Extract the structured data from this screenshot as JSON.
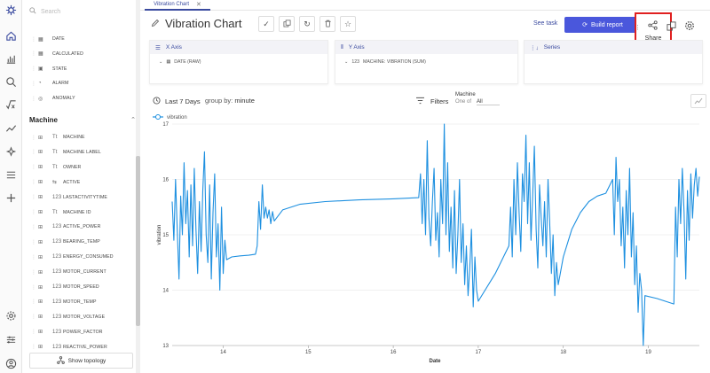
{
  "search": {
    "placeholder": "Search"
  },
  "panel": {
    "base_fields": [
      {
        "type": "date",
        "name": "DATE"
      },
      {
        "type": "calc",
        "name": "CALCULATED"
      },
      {
        "type": "state",
        "name": "STATE"
      },
      {
        "type": "alarm",
        "name": "ALARM"
      },
      {
        "type": "anomaly",
        "name": "ANOMALY"
      }
    ],
    "section_title": "Machine",
    "machine_fields": [
      {
        "type": "Tt",
        "name": "MACHINE"
      },
      {
        "type": "Tt",
        "name": "MACHINE LABEL"
      },
      {
        "type": "Tt",
        "name": "OWNER"
      },
      {
        "type": "bool",
        "name": "ACTIVE"
      },
      {
        "type": "123",
        "name": "LASTACTIVITYTIME"
      },
      {
        "type": "Tt",
        "name": "MACHINE ID"
      },
      {
        "type": "123",
        "name": "ACTIVE_POWER"
      },
      {
        "type": "123",
        "name": "BEARING_TEMP"
      },
      {
        "type": "123",
        "name": "ENERGY_CONSUMED"
      },
      {
        "type": "123",
        "name": "MOTOR_CURRENT"
      },
      {
        "type": "123",
        "name": "MOTOR_SPEED"
      },
      {
        "type": "123",
        "name": "MOTOR_TEMP"
      },
      {
        "type": "123",
        "name": "MOTOR_VOLTAGE"
      },
      {
        "type": "123",
        "name": "POWER_FACTOR"
      },
      {
        "type": "123",
        "name": "REACTIVE_POWER"
      }
    ],
    "topology_label": "Show topology"
  },
  "tab": {
    "label": "Vibration Chart"
  },
  "header": {
    "title": "Vibration Chart",
    "see_task": "See task",
    "build_report": "Build report",
    "share_label": "Share"
  },
  "axes": {
    "x": {
      "header": "X Axis",
      "value": "DATE (RAW)"
    },
    "y": {
      "header": "Y Axis",
      "value": "MACHINE: VIBRATION (SUM)"
    },
    "series": {
      "header": "Series"
    }
  },
  "chart_controls": {
    "period": "Last 7 Days",
    "group_prefix": "group by:",
    "group_value": "minute",
    "filters_label": "Filters",
    "machine_label": "Machine",
    "one_of": "One of",
    "all": "All"
  },
  "colors": {
    "accent": "#3a4a9f",
    "button": "#4a57dc",
    "series": "#1e90e0",
    "highlight": "#e02020"
  },
  "chart_data": {
    "type": "line",
    "title": "",
    "xlabel": "Date",
    "ylabel": "vibration",
    "series_name": "vibration",
    "legend": "top-left",
    "grid": true,
    "xlim": [
      13.4,
      19.6
    ],
    "ylim": [
      13,
      17
    ],
    "xticks": [
      14,
      15,
      16,
      17,
      18,
      19
    ],
    "yticks": [
      13,
      14,
      15,
      16,
      17
    ],
    "points": [
      [
        13.4,
        15.6
      ],
      [
        13.42,
        14.9
      ],
      [
        13.44,
        16.0
      ],
      [
        13.46,
        15.1
      ],
      [
        13.48,
        14.2
      ],
      [
        13.5,
        15.7
      ],
      [
        13.52,
        15.0
      ],
      [
        13.54,
        16.3
      ],
      [
        13.56,
        15.2
      ],
      [
        13.58,
        15.8
      ],
      [
        13.6,
        14.6
      ],
      [
        13.62,
        15.9
      ],
      [
        13.64,
        14.8
      ],
      [
        13.66,
        16.2
      ],
      [
        13.68,
        15.1
      ],
      [
        13.7,
        14.3
      ],
      [
        13.72,
        15.6
      ],
      [
        13.74,
        14.7
      ],
      [
        13.76,
        15.8
      ],
      [
        13.78,
        16.5
      ],
      [
        13.8,
        15.0
      ],
      [
        13.82,
        14.5
      ],
      [
        13.84,
        15.9
      ],
      [
        13.86,
        14.2
      ],
      [
        13.88,
        15.4
      ],
      [
        13.9,
        16.1
      ],
      [
        13.92,
        14.6
      ],
      [
        13.94,
        15.2
      ],
      [
        13.96,
        14.0
      ],
      [
        13.98,
        15.5
      ],
      [
        14.0,
        14.3
      ],
      [
        14.02,
        14.9
      ],
      [
        14.04,
        14.55
      ],
      [
        14.1,
        14.6
      ],
      [
        14.2,
        14.62
      ],
      [
        14.3,
        14.63
      ],
      [
        14.38,
        14.65
      ],
      [
        14.4,
        14.8
      ],
      [
        14.42,
        15.6
      ],
      [
        14.44,
        15.1
      ],
      [
        14.46,
        15.9
      ],
      [
        14.48,
        15.3
      ],
      [
        14.5,
        15.5
      ],
      [
        14.52,
        15.3
      ],
      [
        14.54,
        15.45
      ],
      [
        14.56,
        15.2
      ],
      [
        14.58,
        15.42
      ],
      [
        14.6,
        15.25
      ],
      [
        14.7,
        15.45
      ],
      [
        14.9,
        15.55
      ],
      [
        15.2,
        15.6
      ],
      [
        15.6,
        15.63
      ],
      [
        16.0,
        15.65
      ],
      [
        16.3,
        15.67
      ],
      [
        16.32,
        16.1
      ],
      [
        16.34,
        15.2
      ],
      [
        16.36,
        16.0
      ],
      [
        16.38,
        15.0
      ],
      [
        16.4,
        16.7
      ],
      [
        16.42,
        15.3
      ],
      [
        16.44,
        14.8
      ],
      [
        16.46,
        15.6
      ],
      [
        16.48,
        16.2
      ],
      [
        16.5,
        14.9
      ],
      [
        16.52,
        15.4
      ],
      [
        16.54,
        14.6
      ],
      [
        16.56,
        16.0
      ],
      [
        16.58,
        15.2
      ],
      [
        16.6,
        17.0
      ],
      [
        16.62,
        15.0
      ],
      [
        16.64,
        16.3
      ],
      [
        16.66,
        14.7
      ],
      [
        16.68,
        15.5
      ],
      [
        16.7,
        14.4
      ],
      [
        16.72,
        15.8
      ],
      [
        16.74,
        14.3
      ],
      [
        16.76,
        15.0
      ],
      [
        16.78,
        16.0
      ],
      [
        16.8,
        14.5
      ],
      [
        16.82,
        15.2
      ],
      [
        16.84,
        14.1
      ],
      [
        16.86,
        14.8
      ],
      [
        16.88,
        13.9
      ],
      [
        16.9,
        14.4
      ],
      [
        16.92,
        15.1
      ],
      [
        16.94,
        13.7
      ],
      [
        16.96,
        14.6
      ],
      [
        16.98,
        14.0
      ],
      [
        17.0,
        13.8
      ],
      [
        17.2,
        14.3
      ],
      [
        17.36,
        14.8
      ],
      [
        17.38,
        15.5
      ],
      [
        17.4,
        14.6
      ],
      [
        17.42,
        16.0
      ],
      [
        17.44,
        15.0
      ],
      [
        17.46,
        16.3
      ],
      [
        17.48,
        15.4
      ],
      [
        17.5,
        14.7
      ],
      [
        17.52,
        16.1
      ],
      [
        17.54,
        15.6
      ],
      [
        17.56,
        16.8
      ],
      [
        17.58,
        15.2
      ],
      [
        17.6,
        16.3
      ],
      [
        17.62,
        14.9
      ],
      [
        17.64,
        15.7
      ],
      [
        17.66,
        16.6
      ],
      [
        17.68,
        15.1
      ],
      [
        17.7,
        14.4
      ],
      [
        17.72,
        15.9
      ],
      [
        17.74,
        15.3
      ],
      [
        17.76,
        14.8
      ],
      [
        17.78,
        15.6
      ],
      [
        17.8,
        14.6
      ],
      [
        17.82,
        16.0
      ],
      [
        17.84,
        15.2
      ],
      [
        17.86,
        14.3
      ],
      [
        17.88,
        15.0
      ],
      [
        17.9,
        13.9
      ],
      [
        17.92,
        14.5
      ],
      [
        17.94,
        14.1
      ],
      [
        18.0,
        14.6
      ],
      [
        18.1,
        15.1
      ],
      [
        18.2,
        15.4
      ],
      [
        18.3,
        15.6
      ],
      [
        18.4,
        15.7
      ],
      [
        18.5,
        15.75
      ],
      [
        18.58,
        16.0
      ],
      [
        18.6,
        15.0
      ],
      [
        18.62,
        16.4
      ],
      [
        18.64,
        15.6
      ],
      [
        18.66,
        16.0
      ],
      [
        18.68,
        14.8
      ],
      [
        18.7,
        15.5
      ],
      [
        18.72,
        14.4
      ],
      [
        18.74,
        15.8
      ],
      [
        18.76,
        15.0
      ],
      [
        18.78,
        16.2
      ],
      [
        18.8,
        14.6
      ],
      [
        18.82,
        15.4
      ],
      [
        18.84,
        14.1
      ],
      [
        18.86,
        14.8
      ],
      [
        18.88,
        13.6
      ],
      [
        18.9,
        14.3
      ],
      [
        18.92,
        14.0
      ],
      [
        18.94,
        13.0
      ],
      [
        18.96,
        13.9
      ],
      [
        19.1,
        13.85
      ],
      [
        19.3,
        13.75
      ],
      [
        19.32,
        15.5
      ],
      [
        19.34,
        14.6
      ],
      [
        19.36,
        16.0
      ],
      [
        19.38,
        15.2
      ],
      [
        19.4,
        16.2
      ],
      [
        19.42,
        15.4
      ],
      [
        19.44,
        14.2
      ],
      [
        19.46,
        15.8
      ],
      [
        19.48,
        14.9
      ],
      [
        19.5,
        16.1
      ],
      [
        19.52,
        15.3
      ],
      [
        19.54,
        15.9
      ],
      [
        19.56,
        16.2
      ],
      [
        19.58,
        15.7
      ],
      [
        19.6,
        16.05
      ]
    ]
  }
}
